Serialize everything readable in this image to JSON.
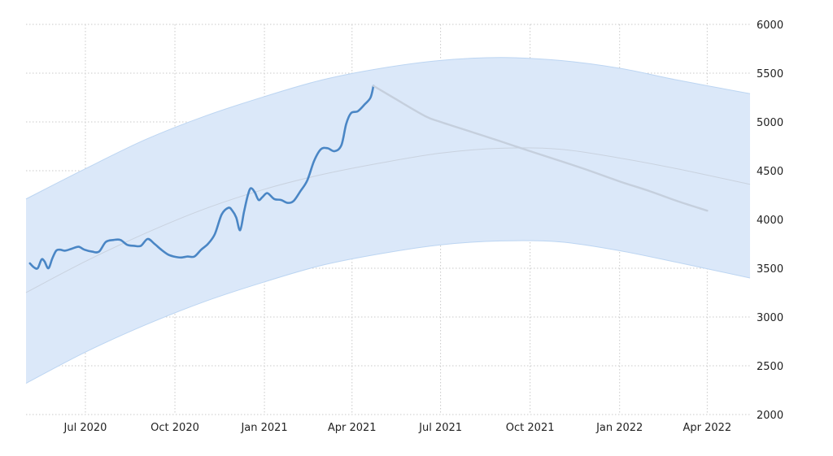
{
  "chart_data": {
    "type": "line",
    "title": "",
    "xlabel": "",
    "ylabel": "",
    "grid": true,
    "legend": "none",
    "xlim": [
      "2020-05-01",
      "2022-05-15"
    ],
    "ylim": [
      2000,
      6000
    ],
    "y_ticks": [
      2000,
      2500,
      3000,
      3500,
      4000,
      4500,
      5000,
      5500,
      6000
    ],
    "x_ticks": [
      {
        "date": "2020-07-01",
        "label": "Jul 2020"
      },
      {
        "date": "2020-10-01",
        "label": "Oct 2020"
      },
      {
        "date": "2021-01-01",
        "label": "Jan 2021"
      },
      {
        "date": "2021-04-01",
        "label": "Apr 2021"
      },
      {
        "date": "2021-07-01",
        "label": "Jul 2021"
      },
      {
        "date": "2021-10-01",
        "label": "Oct 2021"
      },
      {
        "date": "2022-01-01",
        "label": "Jan 2022"
      },
      {
        "date": "2022-04-01",
        "label": "Apr 2022"
      }
    ],
    "colors": {
      "actual": "#4a86c5",
      "forecast": "#c5cfdd",
      "band": "#dbe8f9",
      "band_edge": "#bcd5f2",
      "trend": "#c9d2df"
    },
    "series": [
      {
        "role": "actual",
        "x": [
          "2020-05-05",
          "2020-05-09",
          "2020-05-13",
          "2020-05-17",
          "2020-05-20",
          "2020-05-24",
          "2020-05-28",
          "2020-06-01",
          "2020-06-05",
          "2020-06-10",
          "2020-06-17",
          "2020-06-24",
          "2020-06-30",
          "2020-07-08",
          "2020-07-15",
          "2020-07-22",
          "2020-07-30",
          "2020-08-06",
          "2020-08-13",
          "2020-08-20",
          "2020-08-27",
          "2020-09-03",
          "2020-09-10",
          "2020-09-17",
          "2020-09-24",
          "2020-09-30",
          "2020-10-07",
          "2020-10-14",
          "2020-10-21",
          "2020-10-28",
          "2020-11-04",
          "2020-11-11",
          "2020-11-18",
          "2020-11-25",
          "2020-11-29",
          "2020-12-03",
          "2020-12-07",
          "2020-12-11",
          "2020-12-15",
          "2020-12-18",
          "2020-12-22",
          "2020-12-26",
          "2020-12-30",
          "2021-01-04",
          "2021-01-11",
          "2021-01-18",
          "2021-01-25",
          "2021-01-31",
          "2021-02-07",
          "2021-02-14",
          "2021-02-21",
          "2021-02-28",
          "2021-03-07",
          "2021-03-14",
          "2021-03-21",
          "2021-03-26",
          "2021-03-31",
          "2021-04-07",
          "2021-04-14",
          "2021-04-20",
          "2021-04-23"
        ],
        "values": [
          3550,
          3510,
          3500,
          3590,
          3570,
          3500,
          3600,
          3680,
          3690,
          3680,
          3700,
          3720,
          3690,
          3670,
          3670,
          3770,
          3790,
          3790,
          3740,
          3730,
          3730,
          3800,
          3750,
          3690,
          3640,
          3620,
          3610,
          3620,
          3620,
          3690,
          3750,
          3850,
          4050,
          4120,
          4090,
          4020,
          3890,
          4080,
          4250,
          4320,
          4280,
          4200,
          4230,
          4270,
          4210,
          4200,
          4170,
          4190,
          4290,
          4400,
          4600,
          4720,
          4730,
          4700,
          4760,
          4980,
          5090,
          5110,
          5180,
          5250,
          5370
        ]
      },
      {
        "role": "forecast",
        "x": [
          "2021-04-23",
          "2021-05-15",
          "2021-06-15",
          "2021-07-01",
          "2021-08-01",
          "2021-09-01",
          "2021-10-01",
          "2021-11-01",
          "2021-12-01",
          "2022-01-01",
          "2022-02-01",
          "2022-03-01",
          "2022-04-01"
        ],
        "values": [
          5370,
          5240,
          5060,
          5000,
          4900,
          4800,
          4700,
          4600,
          4500,
          4390,
          4290,
          4190,
          4090
        ]
      }
    ],
    "band": {
      "x": [
        "2020-05-01",
        "2020-07-01",
        "2020-09-01",
        "2020-11-01",
        "2021-01-01",
        "2021-03-01",
        "2021-05-01",
        "2021-07-01",
        "2021-09-01",
        "2021-11-01",
        "2022-01-01",
        "2022-03-01",
        "2022-05-15"
      ],
      "upper": [
        4210,
        4520,
        4820,
        5060,
        5260,
        5430,
        5550,
        5630,
        5660,
        5630,
        5550,
        5430,
        5290
      ],
      "lower": [
        2320,
        2640,
        2920,
        3160,
        3360,
        3530,
        3650,
        3740,
        3780,
        3770,
        3680,
        3560,
        3400
      ],
      "trend": [
        3250,
        3570,
        3860,
        4110,
        4310,
        4460,
        4580,
        4680,
        4730,
        4720,
        4630,
        4520,
        4360
      ]
    }
  }
}
